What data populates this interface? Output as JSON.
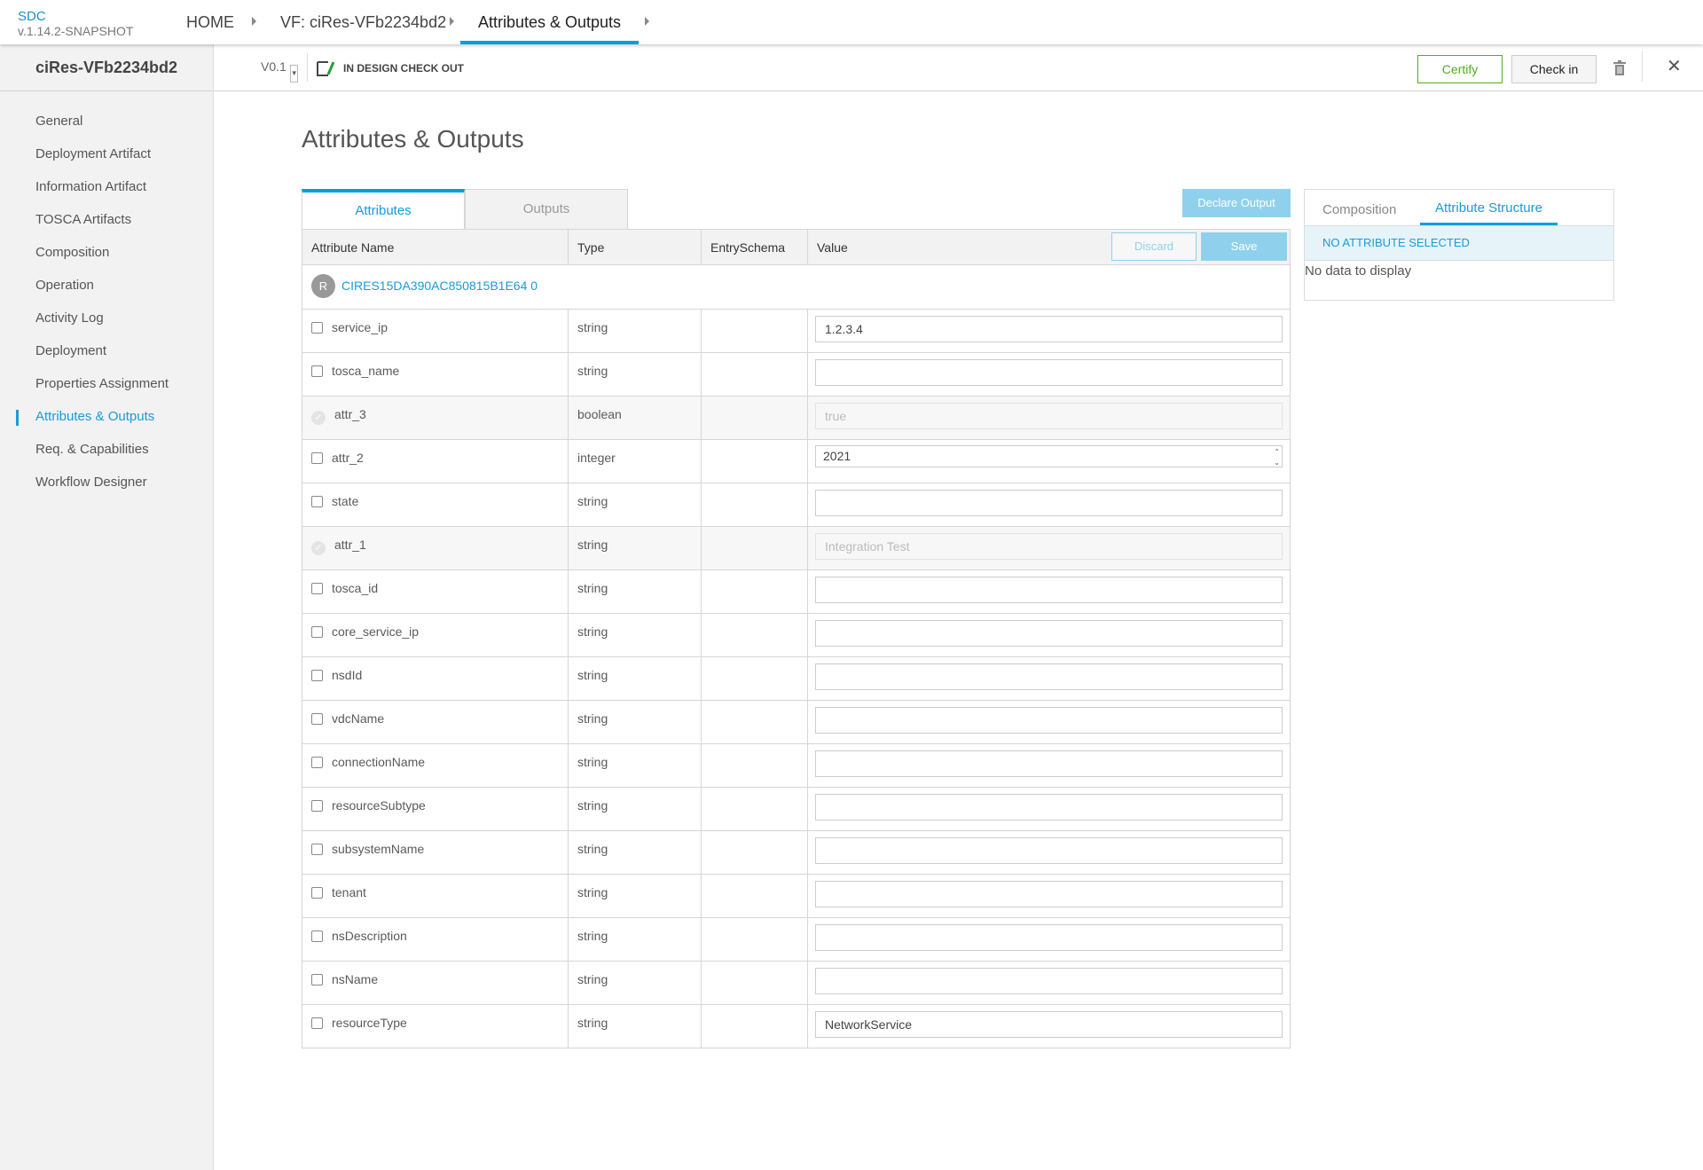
{
  "app": {
    "name": "SDC",
    "version": "v.1.14.2-SNAPSHOT"
  },
  "breadcrumb": [
    {
      "label": "HOME"
    },
    {
      "label": "VF: ciRes-VFb2234bd2"
    },
    {
      "label": "Attributes & Outputs"
    }
  ],
  "subbar": {
    "resource_name": "ciRes-VFb2234bd2",
    "version": "V0.1",
    "status": "IN DESIGN CHECK OUT",
    "certify": "Certify",
    "checkin": "Check in"
  },
  "sidebar": {
    "items": [
      {
        "label": "General"
      },
      {
        "label": "Deployment Artifact"
      },
      {
        "label": "Information Artifact"
      },
      {
        "label": "TOSCA Artifacts"
      },
      {
        "label": "Composition"
      },
      {
        "label": "Operation"
      },
      {
        "label": "Activity Log"
      },
      {
        "label": "Deployment"
      },
      {
        "label": "Properties Assignment"
      },
      {
        "label": "Attributes & Outputs",
        "active": true
      },
      {
        "label": "Req. & Capabilities"
      },
      {
        "label": "Workflow Designer"
      }
    ]
  },
  "main": {
    "title": "Attributes & Outputs",
    "tabs": [
      {
        "label": "Attributes",
        "active": true
      },
      {
        "label": "Outputs"
      }
    ],
    "declare_output": "Declare Output",
    "discard": "Discard",
    "save": "Save",
    "columns": [
      "Attribute Name",
      "Type",
      "EntrySchema",
      "Value"
    ],
    "group": {
      "badge": "R",
      "name": "CIRES15DA390AC850815B1E64 0"
    },
    "rows": [
      {
        "name": "service_ip",
        "type": "string",
        "value": "1.2.3.4"
      },
      {
        "name": "tosca_name",
        "type": "string",
        "value": ""
      },
      {
        "name": "attr_3",
        "type": "boolean",
        "value": "true",
        "disabled": true
      },
      {
        "name": "attr_2",
        "type": "integer",
        "value": "2021",
        "number": true
      },
      {
        "name": "state",
        "type": "string",
        "value": ""
      },
      {
        "name": "attr_1",
        "type": "string",
        "value": "Integration Test",
        "disabled": true
      },
      {
        "name": "tosca_id",
        "type": "string",
        "value": ""
      },
      {
        "name": "core_service_ip",
        "type": "string",
        "value": ""
      },
      {
        "name": "nsdId",
        "type": "string",
        "value": ""
      },
      {
        "name": "vdcName",
        "type": "string",
        "value": ""
      },
      {
        "name": "connectionName",
        "type": "string",
        "value": ""
      },
      {
        "name": "resourceSubtype",
        "type": "string",
        "value": ""
      },
      {
        "name": "subsystemName",
        "type": "string",
        "value": ""
      },
      {
        "name": "tenant",
        "type": "string",
        "value": ""
      },
      {
        "name": "nsDescription",
        "type": "string",
        "value": ""
      },
      {
        "name": "nsName",
        "type": "string",
        "value": ""
      },
      {
        "name": "resourceType",
        "type": "string",
        "value": "NetworkService"
      }
    ]
  },
  "right_panel": {
    "tabs": [
      {
        "label": "Composition"
      },
      {
        "label": "Attribute Structure",
        "active": true
      }
    ],
    "header": "NO ATTRIBUTE SELECTED",
    "empty": "No data to display"
  },
  "colors": {
    "accent": "#009fdb",
    "certify": "#4cae1c",
    "button_disabled": "#8fd1ec"
  }
}
